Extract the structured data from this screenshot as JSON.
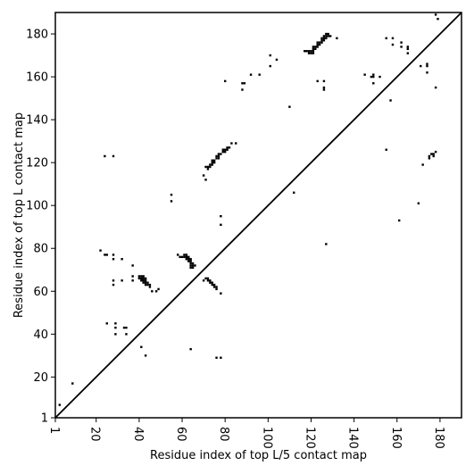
{
  "chart_data": {
    "type": "heatmap",
    "title": "",
    "xlabel": "Residue index of top L/5 contact map",
    "ylabel": "Residue index of top L contact map",
    "xlim": [
      1,
      190
    ],
    "ylim": [
      1,
      190
    ],
    "xticks": [
      1,
      20,
      40,
      60,
      80,
      100,
      120,
      140,
      160,
      180
    ],
    "yticks": [
      1,
      20,
      40,
      60,
      80,
      100,
      120,
      140,
      160,
      180
    ],
    "x_tick_labels": [
      "1",
      "20",
      "40",
      "60",
      "80",
      "100",
      "120",
      "140",
      "160",
      "180"
    ],
    "y_tick_labels": [
      "1",
      "20",
      "40",
      "60",
      "80",
      "100",
      "120",
      "140",
      "160",
      "180"
    ],
    "grid": false,
    "diagonal": true,
    "mark_color": "#000000",
    "upper_contacts": [
      [
        22,
        79
      ],
      [
        24,
        77
      ],
      [
        25,
        77
      ],
      [
        28,
        77
      ],
      [
        28,
        75
      ],
      [
        28,
        65
      ],
      [
        28,
        63
      ],
      [
        32,
        75
      ],
      [
        32,
        65
      ],
      [
        37,
        72
      ],
      [
        37,
        67
      ],
      [
        37,
        65
      ],
      [
        40,
        67
      ],
      [
        41,
        67
      ],
      [
        42,
        67
      ],
      [
        40,
        66
      ],
      [
        41,
        66
      ],
      [
        42,
        66
      ],
      [
        43,
        66
      ],
      [
        41,
        65
      ],
      [
        42,
        65
      ],
      [
        43,
        65
      ],
      [
        42,
        64
      ],
      [
        43,
        64
      ],
      [
        44,
        64
      ],
      [
        43,
        63
      ],
      [
        44,
        63
      ],
      [
        45,
        63
      ],
      [
        45,
        62
      ],
      [
        46,
        60
      ],
      [
        48,
        60
      ],
      [
        49,
        61
      ],
      [
        58,
        77
      ],
      [
        59,
        76
      ],
      [
        60,
        76
      ],
      [
        61,
        77
      ],
      [
        62,
        77
      ],
      [
        61,
        76
      ],
      [
        62,
        76
      ],
      [
        63,
        76
      ],
      [
        62,
        75
      ],
      [
        63,
        75
      ],
      [
        64,
        75
      ],
      [
        63,
        74
      ],
      [
        64,
        74
      ],
      [
        64,
        73
      ],
      [
        65,
        73
      ],
      [
        64,
        72
      ],
      [
        65,
        72
      ],
      [
        66,
        72
      ],
      [
        64,
        71
      ],
      [
        65,
        71
      ],
      [
        70,
        65
      ],
      [
        71,
        66
      ],
      [
        72,
        66
      ],
      [
        72,
        65
      ],
      [
        73,
        65
      ],
      [
        73,
        64
      ],
      [
        74,
        64
      ],
      [
        74,
        63
      ],
      [
        75,
        63
      ],
      [
        75,
        62
      ],
      [
        76,
        62
      ],
      [
        76,
        61
      ],
      [
        78,
        59
      ],
      [
        24,
        123
      ],
      [
        28,
        123
      ],
      [
        55,
        105
      ],
      [
        55,
        102
      ],
      [
        78,
        95
      ],
      [
        78,
        91
      ],
      [
        70,
        114
      ],
      [
        71,
        112
      ],
      [
        71,
        118
      ],
      [
        72,
        118
      ],
      [
        73,
        118
      ],
      [
        72,
        117
      ],
      [
        73,
        119
      ],
      [
        74,
        119
      ],
      [
        74,
        120
      ],
      [
        75,
        120
      ],
      [
        74,
        121
      ],
      [
        75,
        121
      ],
      [
        76,
        122
      ],
      [
        77,
        122
      ],
      [
        76,
        123
      ],
      [
        77,
        123
      ],
      [
        77,
        124
      ],
      [
        78,
        124
      ],
      [
        79,
        125
      ],
      [
        80,
        125
      ],
      [
        79,
        126
      ],
      [
        80,
        126
      ],
      [
        81,
        126
      ],
      [
        81,
        127
      ],
      [
        82,
        127
      ],
      [
        83,
        129
      ],
      [
        85,
        129
      ],
      [
        80,
        158
      ],
      [
        88,
        157
      ],
      [
        88,
        154
      ],
      [
        89,
        157
      ],
      [
        92,
        161
      ],
      [
        96,
        161
      ],
      [
        101,
        170
      ],
      [
        101,
        165
      ],
      [
        104,
        168
      ],
      [
        110,
        146
      ],
      [
        112,
        106
      ],
      [
        117,
        172
      ],
      [
        118,
        172
      ],
      [
        119,
        171
      ],
      [
        120,
        171
      ],
      [
        121,
        171
      ],
      [
        119,
        172
      ],
      [
        120,
        172
      ],
      [
        121,
        172
      ],
      [
        121,
        173
      ],
      [
        122,
        173
      ],
      [
        121,
        174
      ],
      [
        122,
        174
      ],
      [
        123,
        174
      ],
      [
        123,
        175
      ],
      [
        124,
        175
      ],
      [
        123,
        176
      ],
      [
        124,
        176
      ],
      [
        125,
        176
      ],
      [
        125,
        177
      ],
      [
        126,
        177
      ],
      [
        125,
        178
      ],
      [
        126,
        178
      ],
      [
        127,
        178
      ],
      [
        126,
        179
      ],
      [
        127,
        179
      ],
      [
        128,
        179
      ],
      [
        127,
        180
      ],
      [
        128,
        180
      ],
      [
        129,
        179
      ],
      [
        132,
        178
      ],
      [
        123,
        158
      ],
      [
        126,
        158
      ],
      [
        126,
        155
      ],
      [
        126,
        154
      ],
      [
        127,
        82
      ],
      [
        145,
        161
      ],
      [
        148,
        160
      ],
      [
        149,
        160
      ],
      [
        149,
        161
      ],
      [
        149,
        157
      ],
      [
        152,
        160
      ],
      [
        155,
        178
      ],
      [
        155,
        126
      ],
      [
        157,
        149
      ],
      [
        158,
        178
      ],
      [
        158,
        175
      ],
      [
        161,
        93
      ],
      [
        162,
        176
      ],
      [
        162,
        174
      ],
      [
        165,
        174
      ],
      [
        165,
        173
      ],
      [
        165,
        171
      ],
      [
        170,
        101
      ],
      [
        171,
        165
      ],
      [
        172,
        119
      ],
      [
        174,
        166
      ],
      [
        174,
        165
      ],
      [
        174,
        162
      ],
      [
        175,
        123
      ],
      [
        175,
        122
      ],
      [
        176,
        124
      ],
      [
        177,
        123
      ],
      [
        177,
        124
      ],
      [
        178,
        155
      ],
      [
        178,
        125
      ],
      [
        178,
        189
      ],
      [
        179,
        187
      ]
    ],
    "lower_contacts": [
      [
        3,
        7
      ],
      [
        9,
        17
      ],
      [
        25,
        45
      ],
      [
        29,
        45
      ],
      [
        29,
        43
      ],
      [
        33,
        43
      ],
      [
        34,
        43
      ],
      [
        29,
        40
      ],
      [
        34,
        40
      ],
      [
        41,
        34
      ],
      [
        43,
        30
      ],
      [
        64,
        33
      ],
      [
        76,
        29
      ],
      [
        78,
        29
      ]
    ]
  }
}
